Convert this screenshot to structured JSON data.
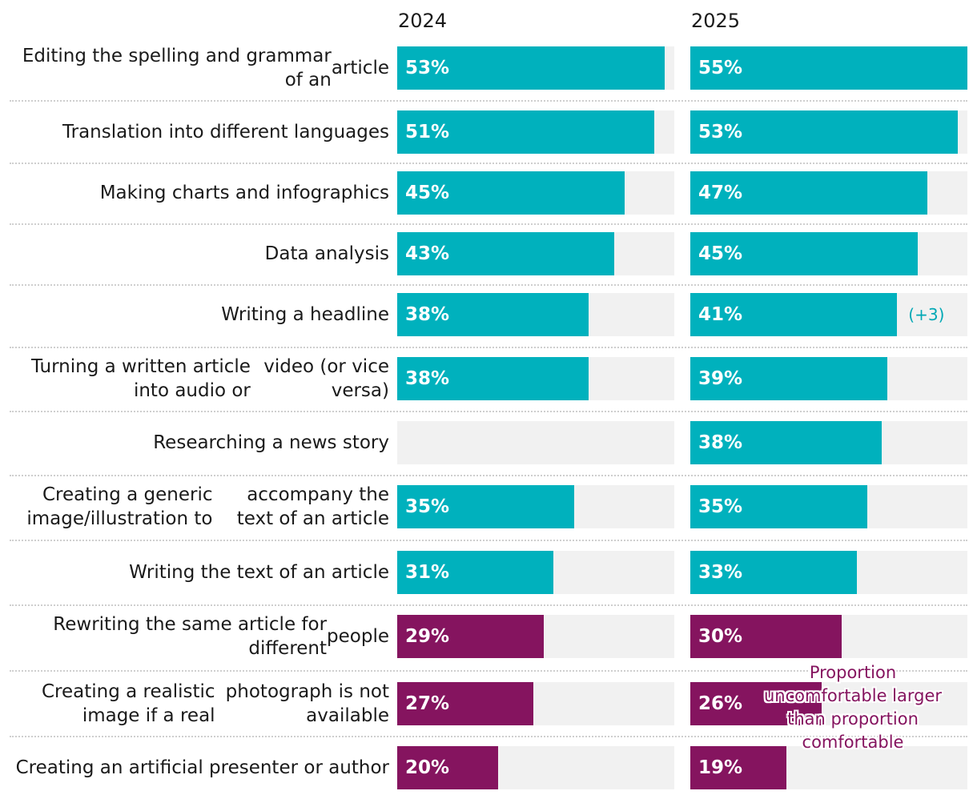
{
  "chart_data": {
    "type": "bar",
    "orientation": "horizontal",
    "title": "",
    "xlim": [
      0,
      100
    ],
    "series": [
      {
        "name": "2024",
        "values": [
          53,
          51,
          45,
          43,
          38,
          38,
          null,
          35,
          31,
          29,
          27,
          20
        ]
      },
      {
        "name": "2025",
        "values": [
          55,
          53,
          47,
          45,
          41,
          39,
          38,
          35,
          33,
          30,
          26,
          19
        ]
      }
    ],
    "categories": [
      "Editing the spelling and grammar of an article",
      "Translation into different languages",
      "Making charts and infographics",
      "Data analysis",
      "Writing a headline",
      "Turning a written article into audio or video (or vice versa)",
      "Researching a news story",
      "Creating a generic image/illustration to accompany the text of an article",
      "Writing the text of an article",
      "Rewriting the same article for different people",
      "Creating a realistic image if a real photograph is not available",
      "Creating an artificial presenter or author"
    ],
    "label_lines": [
      [
        "Editing the spelling and grammar of an",
        "article"
      ],
      [
        "Translation into different languages"
      ],
      [
        "Making charts and infographics"
      ],
      [
        "Data analysis"
      ],
      [
        "Writing a headline"
      ],
      [
        "Turning a written article into audio or",
        "video (or vice versa)"
      ],
      [
        "Researching a news story"
      ],
      [
        "Creating a generic image/illustration to",
        "accompany the text of an article"
      ],
      [
        "Writing the text of an article"
      ],
      [
        "Rewriting the same article for different",
        "people"
      ],
      [
        "Creating a realistic image if a real",
        "photograph is not available"
      ],
      [
        "Creating an artificial presenter or author"
      ]
    ],
    "value_labels": {
      "2024": [
        "53%",
        "51%",
        "45%",
        "43%",
        "38%",
        "38%",
        "",
        "35%",
        "31%",
        "29%",
        "27%",
        "20%"
      ],
      "2025": [
        "55%",
        "53%",
        "47%",
        "45%",
        "41%",
        "39%",
        "38%",
        "35%",
        "33%",
        "30%",
        "26%",
        "19%"
      ]
    },
    "sentiment": [
      "comfortable",
      "comfortable",
      "comfortable",
      "comfortable",
      "comfortable",
      "comfortable",
      "comfortable",
      "comfortable",
      "comfortable",
      "uncomfortable",
      "uncomfortable",
      "uncomfortable"
    ],
    "annotations": [
      {
        "category_index": 4,
        "series": "2025",
        "text": "(+3)"
      }
    ],
    "note_lines": [
      "Proportion",
      "uncomfortable larger",
      "than proportion",
      "comfortable"
    ],
    "colors": {
      "comfortable": "#00b1bd",
      "uncomfortable": "#85145f",
      "track": "#f1f1f1",
      "delta": "#00a8b5",
      "note": "#85145f"
    }
  }
}
